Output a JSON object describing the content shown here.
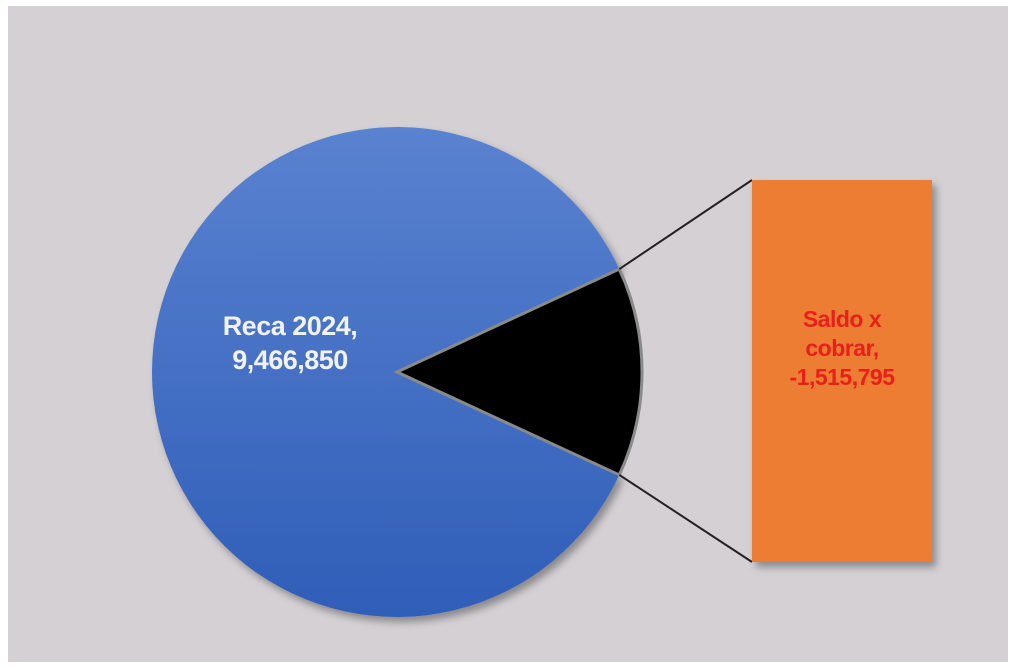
{
  "chart_data": {
    "type": "bar-of-pie",
    "labels": [
      "Reca 2024, 9,466,850",
      "Saldo x cobrar, -1,515,795"
    ],
    "values": [
      9466850,
      -1515795
    ],
    "colors": [
      "#4a72c6",
      "#000000"
    ],
    "bar_color": "#ed7d31",
    "label_colors": [
      "#f2f2f2",
      "#e8201c"
    ]
  }
}
